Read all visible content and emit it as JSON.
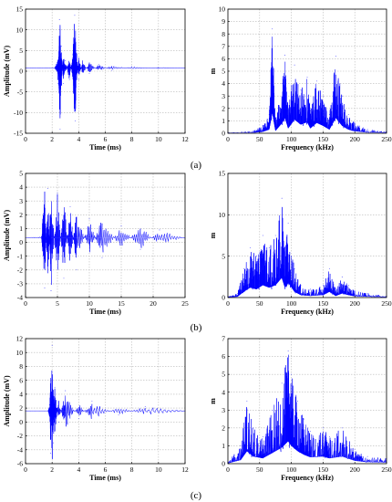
{
  "colors": {
    "signal": "#0000ff",
    "grid": "#b8b8b8",
    "axis": "#000000"
  },
  "panel_labels": [
    "(a)",
    "(b)",
    "(c)"
  ],
  "chart_data": [
    {
      "id": "a-time",
      "type": "line",
      "xlabel": "Time (ms)",
      "ylabel": "Amplitude (mV)",
      "xlim": [
        0,
        12
      ],
      "ylim": [
        -15,
        15
      ],
      "xticks": [
        0,
        2,
        4,
        6,
        8,
        10,
        12
      ],
      "yticks": [
        -15,
        -10,
        -5,
        0,
        5,
        10,
        15
      ],
      "grid": true,
      "series": [
        {
          "points": [
            [
              0,
              0.8
            ],
            [
              2.2,
              0.8
            ],
            [
              2.35,
              2
            ],
            [
              2.45,
              -3
            ],
            [
              2.55,
              12.5
            ],
            [
              2.6,
              -14
            ],
            [
              2.7,
              6
            ],
            [
              2.85,
              -3
            ],
            [
              3,
              2.5
            ],
            [
              3.3,
              -2
            ],
            [
              3.55,
              4
            ],
            [
              3.7,
              13.5
            ],
            [
              3.75,
              -12
            ],
            [
              3.85,
              5
            ],
            [
              4,
              -2
            ],
            [
              4.3,
              2.5
            ],
            [
              4.8,
              -0.5
            ],
            [
              5.5,
              1.6
            ],
            [
              6.5,
              0.2
            ],
            [
              8,
              1.1
            ],
            [
              10,
              0.7
            ],
            [
              12,
              0.8
            ]
          ]
        }
      ]
    },
    {
      "id": "a-freq",
      "type": "line",
      "xlabel": "Frequency (kHz)",
      "ylabel": "m",
      "xlim": [
        0,
        250
      ],
      "ylim": [
        0,
        10
      ],
      "xticks": [
        0,
        50,
        100,
        150,
        200,
        250
      ],
      "yticks": [
        0,
        1,
        2,
        3,
        4,
        5,
        6,
        7,
        8,
        9,
        10
      ],
      "grid": true,
      "series": [
        {
          "points": [
            [
              0,
              0.05
            ],
            [
              40,
              0.2
            ],
            [
              55,
              0.6
            ],
            [
              65,
              1.5
            ],
            [
              70,
              8.4
            ],
            [
              75,
              1
            ],
            [
              85,
              4
            ],
            [
              90,
              6.3
            ],
            [
              95,
              2
            ],
            [
              105,
              5.5
            ],
            [
              115,
              3.5
            ],
            [
              125,
              4.5
            ],
            [
              130,
              2
            ],
            [
              140,
              4.2
            ],
            [
              150,
              3
            ],
            [
              160,
              1.5
            ],
            [
              170,
              6.2
            ],
            [
              180,
              3
            ],
            [
              190,
              1.5
            ],
            [
              200,
              0.8
            ],
            [
              220,
              0.3
            ],
            [
              250,
              0.2
            ]
          ]
        }
      ]
    },
    {
      "id": "b-time",
      "type": "line",
      "xlabel": "Time (ms)",
      "ylabel": "Amplitude (mV)",
      "xlim": [
        0,
        25
      ],
      "ylim": [
        -4,
        5
      ],
      "xticks": [
        0,
        5,
        10,
        15,
        20,
        25
      ],
      "yticks": [
        -4,
        -3,
        -2,
        -1,
        0,
        1,
        2,
        3,
        4,
        5
      ],
      "grid": true,
      "series": [
        {
          "points": [
            [
              0,
              0.35
            ],
            [
              2.5,
              0.4
            ],
            [
              3,
              -3.3
            ],
            [
              3.5,
              3.9
            ],
            [
              4,
              -3.5
            ],
            [
              5,
              3.6
            ],
            [
              6,
              -2.6
            ],
            [
              7,
              2.6
            ],
            [
              8,
              -2
            ],
            [
              10,
              1.7
            ],
            [
              12,
              -1.1
            ],
            [
              15,
              1.2
            ],
            [
              18,
              -0.5
            ],
            [
              21,
              0.9
            ],
            [
              25,
              0.3
            ]
          ]
        }
      ]
    },
    {
      "id": "b-freq",
      "type": "line",
      "xlabel": "Frequency (kHz)",
      "ylabel": "m",
      "xlim": [
        0,
        250
      ],
      "ylim": [
        0,
        15
      ],
      "xticks": [
        0,
        50,
        100,
        150,
        200,
        250
      ],
      "yticks": [
        0,
        5,
        10,
        15
      ],
      "grid": true,
      "series": [
        {
          "points": [
            [
              0,
              0.1
            ],
            [
              15,
              0.5
            ],
            [
              25,
              3.5
            ],
            [
              35,
              6
            ],
            [
              45,
              5
            ],
            [
              55,
              7.5
            ],
            [
              65,
              6
            ],
            [
              75,
              7.5
            ],
            [
              85,
              12
            ],
            [
              90,
              6
            ],
            [
              95,
              9
            ],
            [
              105,
              3.5
            ],
            [
              115,
              1.5
            ],
            [
              130,
              1
            ],
            [
              150,
              1.5
            ],
            [
              160,
              3.5
            ],
            [
              170,
              1
            ],
            [
              180,
              2.5
            ],
            [
              190,
              1.5
            ],
            [
              200,
              0.8
            ],
            [
              220,
              0.5
            ],
            [
              250,
              0.2
            ]
          ]
        }
      ]
    },
    {
      "id": "c-time",
      "type": "line",
      "xlabel": "Time (ms)",
      "ylabel": "Amplitude (mV)",
      "xlim": [
        0,
        12
      ],
      "ylim": [
        -6,
        12
      ],
      "xticks": [
        0,
        2,
        4,
        6,
        8,
        10,
        12
      ],
      "yticks": [
        -6,
        -4,
        -2,
        0,
        2,
        4,
        6,
        8,
        10,
        12
      ],
      "grid": true,
      "series": [
        {
          "points": [
            [
              0,
              1.6
            ],
            [
              1.7,
              1.6
            ],
            [
              1.8,
              2.5
            ],
            [
              1.9,
              -4.5
            ],
            [
              2,
              11
            ],
            [
              2.1,
              -3
            ],
            [
              2.2,
              5
            ],
            [
              2.5,
              0
            ],
            [
              3,
              4.5
            ],
            [
              4,
              0.5
            ],
            [
              5,
              3
            ],
            [
              7,
              1
            ],
            [
              9,
              2.2
            ],
            [
              12,
              1.6
            ]
          ]
        }
      ]
    },
    {
      "id": "c-freq",
      "type": "line",
      "xlabel": "Frequency (kHz)",
      "ylabel": "m",
      "xlim": [
        0,
        250
      ],
      "ylim": [
        0,
        7
      ],
      "xticks": [
        0,
        50,
        100,
        150,
        200,
        250
      ],
      "yticks": [
        0,
        1,
        2,
        3,
        4,
        5,
        6,
        7
      ],
      "grid": true,
      "series": [
        {
          "points": [
            [
              0,
              0.1
            ],
            [
              20,
              1
            ],
            [
              30,
              3.5
            ],
            [
              40,
              2
            ],
            [
              55,
              1.5
            ],
            [
              70,
              3
            ],
            [
              85,
              4.5
            ],
            [
              95,
              6.3
            ],
            [
              100,
              5
            ],
            [
              110,
              3.5
            ],
            [
              120,
              2.5
            ],
            [
              130,
              1.8
            ],
            [
              150,
              2
            ],
            [
              160,
              1.5
            ],
            [
              180,
              2
            ],
            [
              200,
              0.8
            ],
            [
              220,
              0.4
            ],
            [
              250,
              0.3
            ]
          ]
        }
      ]
    }
  ]
}
